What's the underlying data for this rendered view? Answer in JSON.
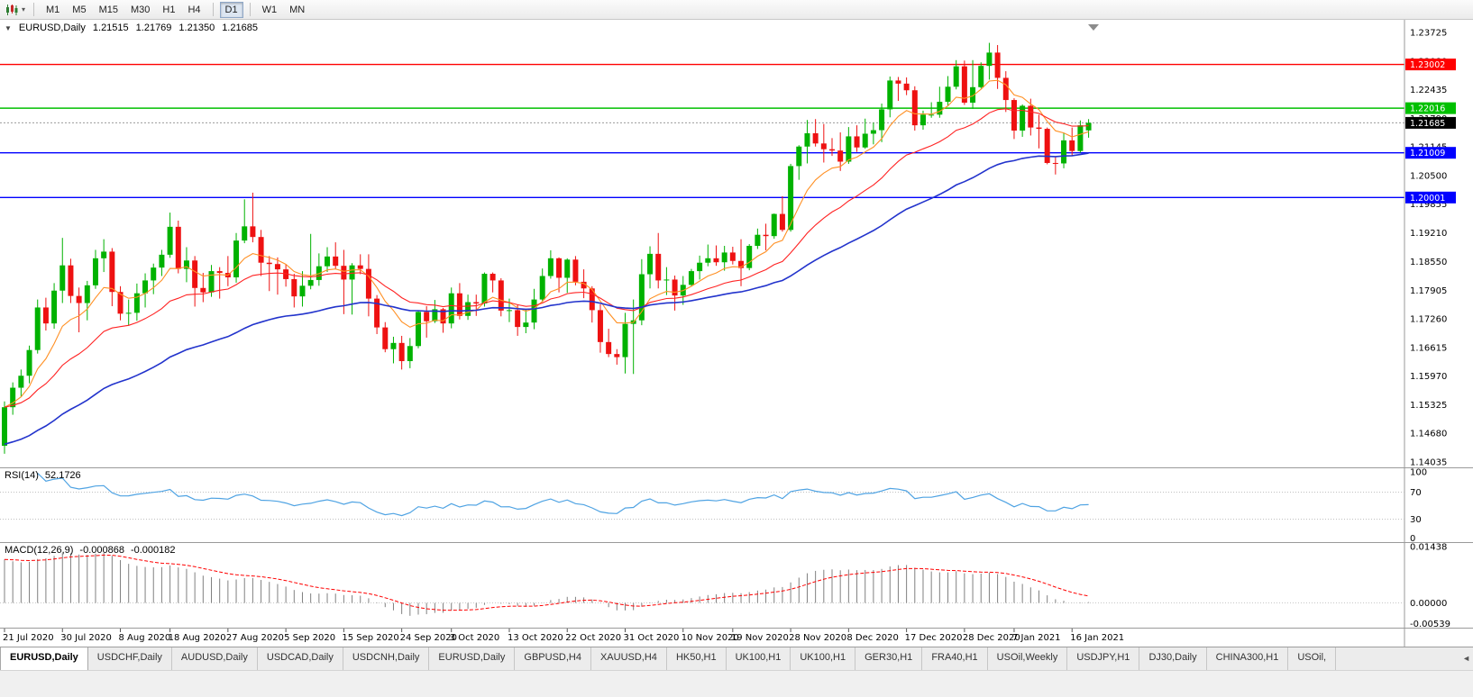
{
  "icons": {
    "dropdown_caret": "▾",
    "collapse_arrow": "▼",
    "tab_scroll_left": "◄"
  },
  "toolbar": {
    "timeframes": [
      {
        "label": "M1",
        "active": false
      },
      {
        "label": "M5",
        "active": false
      },
      {
        "label": "M15",
        "active": false
      },
      {
        "label": "M30",
        "active": false
      },
      {
        "label": "H1",
        "active": false
      },
      {
        "label": "H4",
        "active": false
      },
      {
        "label": "D1",
        "active": true
      },
      {
        "label": "W1",
        "active": false
      },
      {
        "label": "MN",
        "active": false
      }
    ]
  },
  "chart_header": {
    "symbol": "EURUSD,Daily",
    "open": "1.21515",
    "high": "1.21769",
    "low": "1.21350",
    "close": "1.21685"
  },
  "chart_data": {
    "type": "candlestick",
    "title": "EURUSD,Daily",
    "price_axis": {
      "min": 1.14035,
      "max": 1.23725,
      "tick_labels": [
        "1.23725",
        "1.23080",
        "1.22435",
        "1.21790",
        "1.21145",
        "1.20500",
        "1.19855",
        "1.19210",
        "1.18550",
        "1.17905",
        "1.17260",
        "1.16615",
        "1.15970",
        "1.15325",
        "1.14680",
        "1.14035"
      ]
    },
    "date_labels": [
      "21 Jul 2020",
      "30 Jul 2020",
      "8 Aug 2020",
      "18 Aug 2020",
      "27 Aug 2020",
      "5 Sep 2020",
      "15 Sep 2020",
      "24 Sep 2020",
      "3 Oct 2020",
      "13 Oct 2020",
      "22 Oct 2020",
      "31 Oct 2020",
      "10 Nov 2020",
      "19 Nov 2020",
      "28 Nov 2020",
      "8 Dec 2020",
      "17 Dec 2020",
      "28 Dec 2020",
      "7 Jan 2021",
      "16 Jan 2021"
    ],
    "candles": [
      [
        1.144,
        1.154,
        1.1422,
        1.1527
      ],
      [
        1.1527,
        1.1583,
        1.151,
        1.1571
      ],
      [
        1.1571,
        1.1612,
        1.1551,
        1.1598
      ],
      [
        1.1598,
        1.1666,
        1.1581,
        1.1656
      ],
      [
        1.1656,
        1.177,
        1.1648,
        1.1752
      ],
      [
        1.1752,
        1.1774,
        1.17,
        1.1716
      ],
      [
        1.1716,
        1.1807,
        1.1704,
        1.179
      ],
      [
        1.179,
        1.1909,
        1.1762,
        1.1847
      ],
      [
        1.1847,
        1.1862,
        1.1762,
        1.1778
      ],
      [
        1.1778,
        1.1797,
        1.1696,
        1.1762
      ],
      [
        1.1762,
        1.1812,
        1.1723,
        1.1802
      ],
      [
        1.1802,
        1.1882,
        1.1794,
        1.1863
      ],
      [
        1.1863,
        1.1906,
        1.1832,
        1.1878
      ],
      [
        1.1878,
        1.1886,
        1.1755,
        1.1787
      ],
      [
        1.1787,
        1.18,
        1.1723,
        1.1738
      ],
      [
        1.1738,
        1.177,
        1.1711,
        1.174
      ],
      [
        1.174,
        1.1806,
        1.1722,
        1.1784
      ],
      [
        1.1784,
        1.1829,
        1.1752,
        1.1813
      ],
      [
        1.1813,
        1.1851,
        1.1782,
        1.1842
      ],
      [
        1.1842,
        1.1882,
        1.1823,
        1.1871
      ],
      [
        1.1871,
        1.1966,
        1.1864,
        1.1934
      ],
      [
        1.1934,
        1.1948,
        1.1829,
        1.1839
      ],
      [
        1.1839,
        1.1888,
        1.1809,
        1.1858
      ],
      [
        1.1858,
        1.1868,
        1.1754,
        1.1796
      ],
      [
        1.1796,
        1.183,
        1.1764,
        1.1786
      ],
      [
        1.1786,
        1.1848,
        1.1776,
        1.1834
      ],
      [
        1.1834,
        1.1843,
        1.1772,
        1.183
      ],
      [
        1.183,
        1.1868,
        1.18,
        1.182
      ],
      [
        1.182,
        1.192,
        1.1808,
        1.1903
      ],
      [
        1.1903,
        1.1996,
        1.1897,
        1.1935
      ],
      [
        1.1935,
        1.2011,
        1.1899,
        1.1911
      ],
      [
        1.1911,
        1.1927,
        1.1823,
        1.1853
      ],
      [
        1.1853,
        1.1868,
        1.1789,
        1.185
      ],
      [
        1.185,
        1.1865,
        1.1781,
        1.1838
      ],
      [
        1.1838,
        1.1849,
        1.1799,
        1.1816
      ],
      [
        1.1816,
        1.1828,
        1.1752,
        1.1777
      ],
      [
        1.1777,
        1.1834,
        1.1754,
        1.1801
      ],
      [
        1.1801,
        1.1918,
        1.1793,
        1.1814
      ],
      [
        1.1814,
        1.1874,
        1.1801,
        1.1845
      ],
      [
        1.1845,
        1.1888,
        1.1832,
        1.1867
      ],
      [
        1.1867,
        1.1899,
        1.1839,
        1.1846
      ],
      [
        1.1846,
        1.1882,
        1.1737,
        1.1815
      ],
      [
        1.1815,
        1.1852,
        1.1736,
        1.1847
      ],
      [
        1.1847,
        1.1872,
        1.1827,
        1.1839
      ],
      [
        1.1839,
        1.1872,
        1.1732,
        1.1772
      ],
      [
        1.1772,
        1.178,
        1.1692,
        1.1707
      ],
      [
        1.1707,
        1.1719,
        1.1651,
        1.1658
      ],
      [
        1.1658,
        1.1686,
        1.1626,
        1.1672
      ],
      [
        1.1672,
        1.1688,
        1.1612,
        1.1631
      ],
      [
        1.1631,
        1.1683,
        1.1615,
        1.1665
      ],
      [
        1.1665,
        1.1745,
        1.166,
        1.1742
      ],
      [
        1.1742,
        1.1755,
        1.1684,
        1.1721
      ],
      [
        1.1721,
        1.1769,
        1.1717,
        1.1748
      ],
      [
        1.1748,
        1.1751,
        1.1695,
        1.1716
      ],
      [
        1.1716,
        1.1797,
        1.1705,
        1.1784
      ],
      [
        1.1784,
        1.1807,
        1.1725,
        1.1733
      ],
      [
        1.1733,
        1.1781,
        1.1724,
        1.1764
      ],
      [
        1.1764,
        1.1781,
        1.1733,
        1.1761
      ],
      [
        1.1761,
        1.1831,
        1.1754,
        1.1828
      ],
      [
        1.1828,
        1.1831,
        1.1786,
        1.1813
      ],
      [
        1.1813,
        1.1818,
        1.1732,
        1.1745
      ],
      [
        1.1745,
        1.1772,
        1.1719,
        1.1746
      ],
      [
        1.1746,
        1.1758,
        1.1688,
        1.1708
      ],
      [
        1.1708,
        1.1747,
        1.1694,
        1.1718
      ],
      [
        1.1718,
        1.1794,
        1.1703,
        1.177
      ],
      [
        1.177,
        1.184,
        1.1764,
        1.1823
      ],
      [
        1.1823,
        1.1881,
        1.1817,
        1.1863
      ],
      [
        1.1863,
        1.1865,
        1.1786,
        1.1819
      ],
      [
        1.1819,
        1.1863,
        1.1785,
        1.186
      ],
      [
        1.186,
        1.1868,
        1.1802,
        1.181
      ],
      [
        1.181,
        1.1838,
        1.1773,
        1.1795
      ],
      [
        1.1795,
        1.18,
        1.1718,
        1.1746
      ],
      [
        1.1746,
        1.1759,
        1.165,
        1.1674
      ],
      [
        1.1674,
        1.1704,
        1.164,
        1.1647
      ],
      [
        1.1647,
        1.1658,
        1.1623,
        1.164
      ],
      [
        1.164,
        1.174,
        1.1603,
        1.1715
      ],
      [
        1.1715,
        1.177,
        1.1602,
        1.1723
      ],
      [
        1.1723,
        1.1861,
        1.1712,
        1.1827
      ],
      [
        1.1827,
        1.189,
        1.1795,
        1.1873
      ],
      [
        1.1873,
        1.192,
        1.1795,
        1.1813
      ],
      [
        1.1813,
        1.1843,
        1.178,
        1.1815
      ],
      [
        1.1815,
        1.1824,
        1.1745,
        1.1779
      ],
      [
        1.1779,
        1.1823,
        1.1758,
        1.1803
      ],
      [
        1.1803,
        1.1839,
        1.1799,
        1.1834
      ],
      [
        1.1834,
        1.1869,
        1.1815,
        1.1853
      ],
      [
        1.1853,
        1.1894,
        1.1845,
        1.1863
      ],
      [
        1.1863,
        1.1892,
        1.1846,
        1.1854
      ],
      [
        1.1854,
        1.1891,
        1.1835,
        1.1876
      ],
      [
        1.1876,
        1.1889,
        1.1849,
        1.1857
      ],
      [
        1.1857,
        1.1906,
        1.18,
        1.1841
      ],
      [
        1.1841,
        1.1895,
        1.1836,
        1.1891
      ],
      [
        1.1891,
        1.193,
        1.1884,
        1.1916
      ],
      [
        1.1916,
        1.1941,
        1.1881,
        1.1913
      ],
      [
        1.1913,
        1.1964,
        1.1907,
        1.1963
      ],
      [
        1.1963,
        1.2003,
        1.1923,
        1.1927
      ],
      [
        1.1927,
        1.2076,
        1.1923,
        1.2071
      ],
      [
        1.2071,
        1.2118,
        1.204,
        1.2115
      ],
      [
        1.2115,
        1.2175,
        1.2077,
        1.2145
      ],
      [
        1.2145,
        1.2177,
        1.2115,
        1.2122
      ],
      [
        1.2122,
        1.2166,
        1.2079,
        1.2109
      ],
      [
        1.2109,
        1.2134,
        1.2094,
        1.2106
      ],
      [
        1.2106,
        1.2147,
        1.206,
        1.2081
      ],
      [
        1.2081,
        1.2159,
        1.2076,
        1.2138
      ],
      [
        1.2138,
        1.2163,
        1.2103,
        1.2113
      ],
      [
        1.2113,
        1.2178,
        1.211,
        1.2144
      ],
      [
        1.2144,
        1.2169,
        1.212,
        1.2152
      ],
      [
        1.2152,
        1.2212,
        1.2125,
        1.2199
      ],
      [
        1.2199,
        1.2273,
        1.2181,
        1.2264
      ],
      [
        1.2264,
        1.2272,
        1.2218,
        1.2257
      ],
      [
        1.2257,
        1.2271,
        1.2231,
        1.2242
      ],
      [
        1.2242,
        1.2251,
        1.2151,
        1.2163
      ],
      [
        1.2163,
        1.2196,
        1.2153,
        1.2187
      ],
      [
        1.2187,
        1.2215,
        1.218,
        1.2187
      ],
      [
        1.2187,
        1.225,
        1.218,
        1.2216
      ],
      [
        1.2216,
        1.2274,
        1.2206,
        1.225
      ],
      [
        1.225,
        1.231,
        1.2244,
        1.2296
      ],
      [
        1.2296,
        1.2309,
        1.2209,
        1.2214
      ],
      [
        1.2214,
        1.231,
        1.22,
        1.2249
      ],
      [
        1.2249,
        1.2305,
        1.2246,
        1.2297
      ],
      [
        1.2297,
        1.2349,
        1.2266,
        1.2327
      ],
      [
        1.2327,
        1.2344,
        1.2245,
        1.227
      ],
      [
        1.227,
        1.2285,
        1.2193,
        1.222
      ],
      [
        1.222,
        1.2224,
        1.2132,
        1.2151
      ],
      [
        1.2151,
        1.221,
        1.2137,
        1.2207
      ],
      [
        1.2207,
        1.2223,
        1.214,
        1.2158
      ],
      [
        1.2158,
        1.2187,
        1.2111,
        1.2155
      ],
      [
        1.2155,
        1.2158,
        1.2075,
        1.2078
      ],
      [
        1.2078,
        1.2092,
        1.2052,
        1.2077
      ],
      [
        1.2077,
        1.2145,
        1.2066,
        1.2129
      ],
      [
        1.2129,
        1.2158,
        1.2095,
        1.2105
      ],
      [
        1.2105,
        1.2174,
        1.2101,
        1.2163
      ],
      [
        1.21515,
        1.21769,
        1.2135,
        1.21685
      ]
    ],
    "levels": [
      {
        "label": "1.23002",
        "value": 1.23002,
        "color": "#ff0000",
        "text_color": "#ffffff"
      },
      {
        "label": "1.22016",
        "value": 1.22016,
        "color": "#00c000",
        "text_color": "#ffffff"
      },
      {
        "label": "1.21009",
        "value": 1.21009,
        "color": "#0000ff",
        "text_color": "#ffffff"
      },
      {
        "label": "1.20001",
        "value": 1.20001,
        "color": "#0000ff",
        "text_color": "#ffffff"
      }
    ],
    "current_price": {
      "label": "1.21685",
      "value": 1.21685,
      "color": "#000000"
    },
    "moving_averages": [
      {
        "name": "fast-ema",
        "period": 8,
        "color": "#ff9024"
      },
      {
        "name": "mid-ema",
        "period": 21,
        "color": "#ff2222"
      },
      {
        "name": "slow-ema",
        "period": 48,
        "color": "#2233cc"
      }
    ],
    "indicators": {
      "rsi": {
        "name": "RSI(14)",
        "period": 14,
        "value": "52.1726",
        "color": "#4fa3e3",
        "axis_labels": [
          "100",
          "70",
          "30",
          "0"
        ],
        "guide_levels": [
          70,
          30
        ]
      },
      "macd": {
        "name": "MACD(12,26,9)",
        "value_main": "-0.000868",
        "value_signal": "-0.000182",
        "axis_labels": [
          "0.01438",
          "0.00000",
          "-0.00539"
        ],
        "max": 0.01438,
        "min": -0.00539,
        "histogram_color": "#808080",
        "signal_color": "#ff0000"
      }
    },
    "colors": {
      "up": "#00b200",
      "down": "#ee1111",
      "background": "#ffffff",
      "axis_line": "#9a9a9a"
    }
  },
  "bottom_tabs": {
    "items": [
      {
        "label": "EURUSD,Daily",
        "active": true
      },
      {
        "label": "USDCHF,Daily",
        "active": false
      },
      {
        "label": "AUDUSD,Daily",
        "active": false
      },
      {
        "label": "USDCAD,Daily",
        "active": false
      },
      {
        "label": "USDCNH,Daily",
        "active": false
      },
      {
        "label": "EURUSD,Daily",
        "active": false
      },
      {
        "label": "GBPUSD,H4",
        "active": false
      },
      {
        "label": "XAUUSD,H4",
        "active": false
      },
      {
        "label": "HK50,H1",
        "active": false
      },
      {
        "label": "UK100,H1",
        "active": false
      },
      {
        "label": "UK100,H1",
        "active": false
      },
      {
        "label": "GER30,H1",
        "active": false
      },
      {
        "label": "FRA40,H1",
        "active": false
      },
      {
        "label": "USOil,Weekly",
        "active": false
      },
      {
        "label": "USDJPY,H1",
        "active": false
      },
      {
        "label": "DJ30,Daily",
        "active": false
      },
      {
        "label": "CHINA300,H1",
        "active": false
      },
      {
        "label": "USOil,",
        "active": false
      }
    ]
  }
}
